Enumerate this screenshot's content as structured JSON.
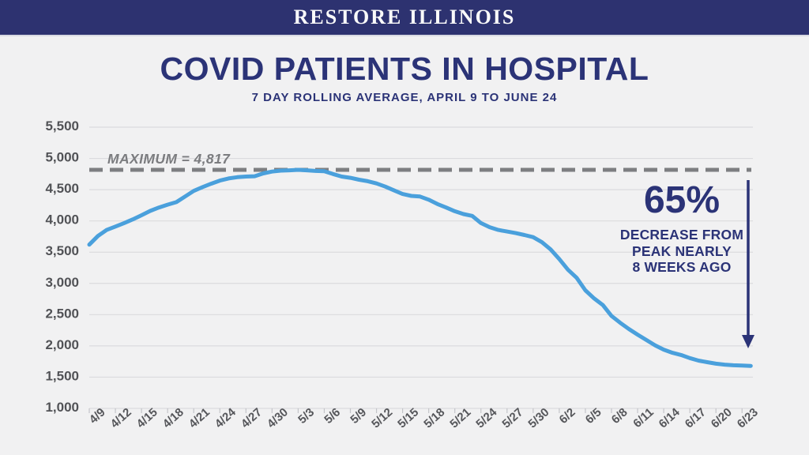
{
  "banner": {
    "title": "RESTORE ILLINOIS"
  },
  "colors": {
    "background": "#F1F1F2",
    "banner_navy": "#2D3270",
    "navy_text": "#2B3377",
    "line_blue": "#4AA0DC",
    "max_dash_gray": "#7D7E81",
    "axis_label_gray": "#56575B",
    "gridline_gray": "#DBDBDE"
  },
  "chart_data": {
    "type": "line",
    "title": "COVID PATIENTS IN HOSPITAL",
    "subtitle": "7 DAY ROLLING AVERAGE, APRIL 9 TO JUNE 24",
    "grid": true,
    "legend_position": "none",
    "ylim": [
      1000,
      5500
    ],
    "y_ticks": [
      5500,
      5000,
      4500,
      4000,
      3500,
      3000,
      2500,
      2000,
      1500,
      1000
    ],
    "y_tick_labels": [
      "5,500",
      "5,000",
      "4,500",
      "4,000",
      "3,500",
      "3,000",
      "2,500",
      "2,000",
      "1,500",
      "1,000"
    ],
    "x_tick_labels": [
      "4/9",
      "4/12",
      "4/15",
      "4/18",
      "4/21",
      "4/24",
      "4/27",
      "4/30",
      "5/3",
      "5/6",
      "5/9",
      "5/12",
      "5/15",
      "5/18",
      "5/21",
      "5/24",
      "5/27",
      "5/30",
      "6/2",
      "6/5",
      "6/8",
      "6/11",
      "6/14",
      "6/17",
      "6/20",
      "6/23"
    ],
    "x_tick_every_days": 3,
    "max_line": {
      "label": "MAXIMUM = 4,817",
      "value": 4817,
      "color": "#7D7E81",
      "style": "dashed"
    },
    "annotation": {
      "headline": "65%",
      "lines": [
        "DECREASE FROM",
        "PEAK NEARLY",
        "8 WEEKS AGO"
      ],
      "color": "#2B3377",
      "arrow": "down"
    },
    "series": [
      {
        "name": "COVID patients in hospital (7-day rolling average)",
        "color": "#4AA0DC",
        "x": [
          "4/9",
          "4/10",
          "4/11",
          "4/12",
          "4/13",
          "4/14",
          "4/15",
          "4/16",
          "4/17",
          "4/18",
          "4/19",
          "4/20",
          "4/21",
          "4/22",
          "4/23",
          "4/24",
          "4/25",
          "4/26",
          "4/27",
          "4/28",
          "4/29",
          "4/30",
          "5/1",
          "5/2",
          "5/3",
          "5/4",
          "5/5",
          "5/6",
          "5/7",
          "5/8",
          "5/9",
          "5/10",
          "5/11",
          "5/12",
          "5/13",
          "5/14",
          "5/15",
          "5/16",
          "5/17",
          "5/18",
          "5/19",
          "5/20",
          "5/21",
          "5/22",
          "5/23",
          "5/24",
          "5/25",
          "5/26",
          "5/27",
          "5/28",
          "5/29",
          "5/30",
          "5/31",
          "6/1",
          "6/2",
          "6/3",
          "6/4",
          "6/5",
          "6/6",
          "6/7",
          "6/8",
          "6/9",
          "6/10",
          "6/11",
          "6/12",
          "6/13",
          "6/14",
          "6/15",
          "6/16",
          "6/17",
          "6/18",
          "6/19",
          "6/20",
          "6/21",
          "6/22",
          "6/23",
          "6/24"
        ],
        "values": [
          3620,
          3760,
          3855,
          3910,
          3965,
          4025,
          4090,
          4160,
          4215,
          4260,
          4300,
          4390,
          4480,
          4540,
          4595,
          4645,
          4680,
          4700,
          4710,
          4715,
          4760,
          4790,
          4805,
          4810,
          4817,
          4810,
          4800,
          4795,
          4750,
          4710,
          4690,
          4660,
          4635,
          4600,
          4550,
          4490,
          4430,
          4400,
          4390,
          4340,
          4270,
          4215,
          4155,
          4110,
          4080,
          3965,
          3900,
          3855,
          3830,
          3805,
          3775,
          3740,
          3660,
          3545,
          3390,
          3220,
          3090,
          2890,
          2760,
          2655,
          2480,
          2370,
          2270,
          2180,
          2095,
          2010,
          1940,
          1890,
          1855,
          1805,
          1765,
          1740,
          1715,
          1700,
          1690,
          1685,
          1680
        ]
      }
    ]
  }
}
